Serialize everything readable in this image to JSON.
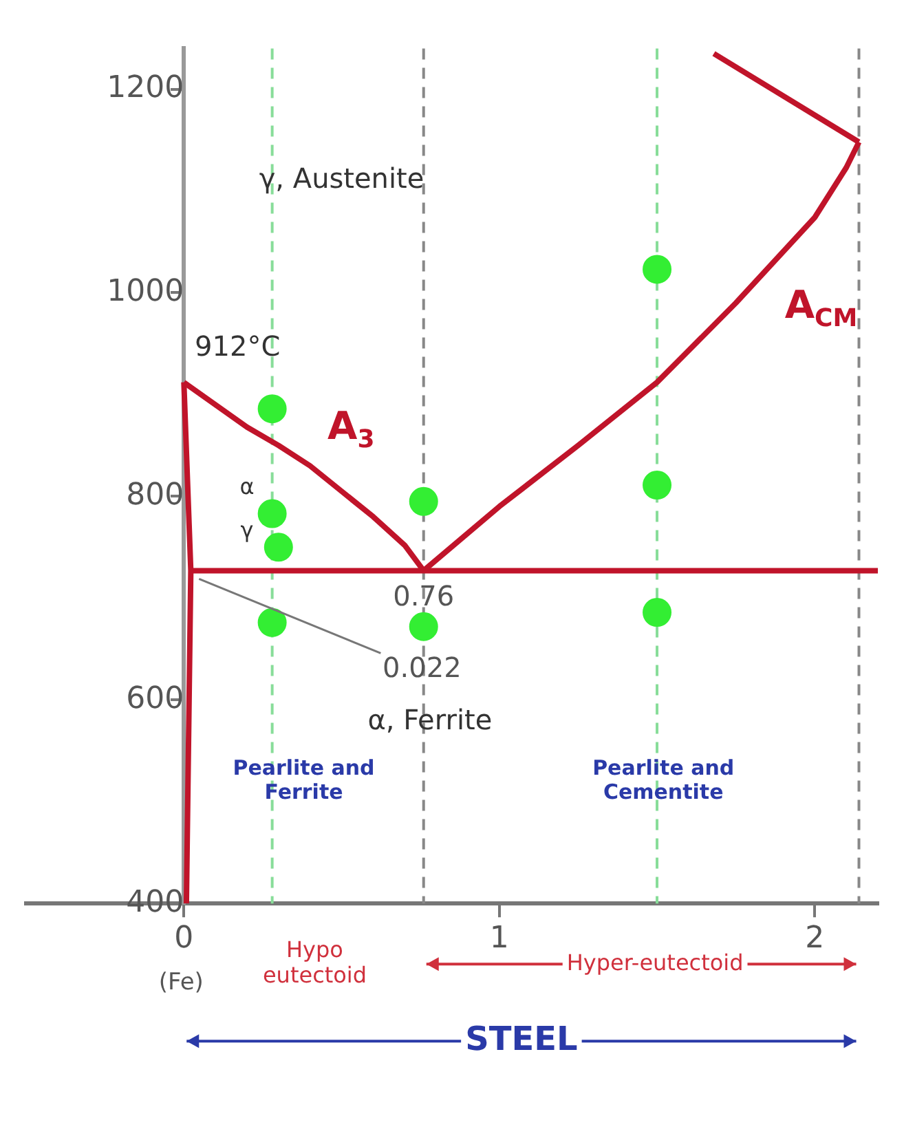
{
  "chart_data": {
    "type": "line",
    "xlim": [
      -0.5,
      2.2
    ],
    "xticks": [
      0,
      1,
      2
    ],
    "ylim": [
      400,
      1240
    ],
    "yticks": [
      400,
      600,
      800,
      1000,
      1200
    ],
    "grid": false,
    "legend": false,
    "marker": "none",
    "line_style": "solid",
    "series": [
      {
        "type": "line",
        "color": "#c0142a",
        "x": [
          0,
          0.1,
          0.2,
          0.3,
          0.4,
          0.5,
          0.6,
          0.7,
          0.76
        ],
        "values": [
          912,
          890,
          868,
          850,
          830,
          805,
          780,
          752,
          727
        ]
      },
      {
        "type": "line",
        "color": "#c0142a",
        "x": [
          0.76,
          1.0,
          1.25,
          1.5,
          1.75,
          2.0,
          2.1,
          2.14
        ],
        "values": [
          727,
          790,
          850,
          912,
          990,
          1074,
          1123,
          1148
        ]
      },
      {
        "type": "line",
        "color": "#c0142a",
        "x": [
          2.14,
          1.68
        ],
        "values": [
          1148,
          1235
        ]
      },
      {
        "type": "line",
        "color": "#c0142a",
        "x": [
          0.022,
          2.2
        ],
        "values": [
          727,
          727
        ]
      },
      {
        "type": "line",
        "color": "#c0142a",
        "x": [
          0,
          0.022,
          0.008
        ],
        "values": [
          912,
          727,
          400
        ]
      },
      {
        "type": "scatter",
        "color": "#33ee33",
        "marker": "circle",
        "x": [
          0.28,
          0.28,
          0.3,
          0.28,
          0.76,
          0.76,
          1.5,
          1.5,
          1.5
        ],
        "values": [
          886,
          783,
          750,
          676,
          795,
          672,
          1023,
          811,
          686
        ]
      }
    ],
    "ref_lines": [
      {
        "axis": "x",
        "value": 0.28,
        "color": "#88dd99",
        "line_style": "dashed"
      },
      {
        "axis": "x",
        "value": 0.76,
        "color": "#888888",
        "line_style": "dashed"
      },
      {
        "axis": "x",
        "value": 1.5,
        "color": "#88dd99",
        "line_style": "dashed"
      },
      {
        "axis": "x",
        "value": 2.14,
        "color": "#888888",
        "line_style": "dashed"
      }
    ],
    "annotations": [
      "γ, Austenite",
      "912°C",
      "A$_{3}$",
      "A$_{CM}$",
      "α",
      "γ",
      {
        "text": "0.76",
        "x": 0.76,
        "y": 727
      },
      {
        "text": "0.022",
        "x": 0.022,
        "y": 727
      },
      "α, Ferrite",
      "Pearlite and\nFerrite",
      "Pearlite and\nCementite",
      "(Fe)",
      "Hypo\neutectoid",
      "Hyper-eutectoid",
      "STEEL"
    ]
  }
}
